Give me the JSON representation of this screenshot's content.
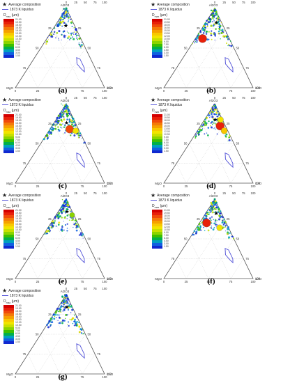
{
  "legend": {
    "average_composition": "Average composition",
    "liquidus": "1873 K liquidus",
    "d_label": "D",
    "d_sub": "max",
    "d_unit": "(μm)",
    "colorbar_ticks": [
      "1.50",
      "3.00",
      "4.50",
      "6.00",
      "7.50",
      "9.00",
      "10.50",
      "12.00",
      "13.50",
      "15.00",
      "16.50",
      "18.00",
      "19.50",
      "21.00",
      "22.50",
      "24.00"
    ]
  },
  "colors": {
    "colorbar": [
      "#d40000",
      "#e8200a",
      "#f04a0a",
      "#f47a08",
      "#f6a000",
      "#f8c800",
      "#f2e400",
      "#c8e000",
      "#8cd400",
      "#3cc000",
      "#00b04a",
      "#00a0c0",
      "#1060e0",
      "#1028d0"
    ],
    "liquidus": "#5050d8",
    "star": "#000000",
    "axis": "#555555"
  },
  "axes": {
    "top_vertex": "Al2O3",
    "right_vertex": "CaO",
    "left_vertex": "MgO",
    "edge_ticks": [
      "0",
      "25",
      "50",
      "75",
      "100"
    ]
  },
  "panels": [
    {
      "caption": "(a)"
    },
    {
      "caption": "(b)"
    },
    {
      "caption": "(c)"
    },
    {
      "caption": "(d)"
    },
    {
      "caption": "(e)"
    },
    {
      "caption": "(f)"
    },
    {
      "caption": "(g)"
    }
  ],
  "chart_data": {
    "type": "scatter",
    "chart_kind": "ternary",
    "components": [
      "Al2O3",
      "CaO",
      "MgO"
    ],
    "tick_values": [
      0,
      25,
      50,
      75,
      100
    ],
    "color_scale": "D_max (μm), 1.50 to 24.00",
    "liquidus_1873K": [
      [
        38,
        47,
        15
      ],
      [
        30,
        52,
        18
      ],
      [
        24,
        60,
        16
      ],
      [
        20,
        66,
        14
      ],
      [
        25,
        63,
        12
      ],
      [
        30,
        58,
        12
      ],
      [
        36,
        52,
        12
      ],
      [
        38,
        47,
        15
      ]
    ],
    "average_composition": [
      {
        "panel": "(a)",
        "Al2O3": 78,
        "CaO": 12,
        "MgO": 10
      },
      {
        "panel": "(b)",
        "Al2O3": 82,
        "CaO": 12,
        "MgO": 6
      },
      {
        "panel": "(c)",
        "Al2O3": 76,
        "CaO": 14,
        "MgO": 10
      },
      {
        "panel": "(d)",
        "Al2O3": 80,
        "CaO": 12,
        "MgO": 8
      },
      {
        "panel": "(e)",
        "Al2O3": 84,
        "CaO": 10,
        "MgO": 6
      },
      {
        "panel": "(f)",
        "Al2O3": 82,
        "CaO": 12,
        "MgO": 6
      },
      {
        "panel": "(g)",
        "Al2O3": 84,
        "CaO": 10,
        "MgO": 6
      }
    ],
    "highlighted_inclusions": [
      {
        "panel": "(b)",
        "Al2O3": 62,
        "CaO": 8,
        "MgO": 30,
        "D_max": 22.5
      },
      {
        "panel": "(c)",
        "Al2O3": 68,
        "CaO": 22,
        "MgO": 10,
        "D_max": 21.0
      },
      {
        "panel": "(c)",
        "Al2O3": 66,
        "CaO": 30,
        "MgO": 4,
        "D_max": 14.0
      },
      {
        "panel": "(d)",
        "Al2O3": 72,
        "CaO": 22,
        "MgO": 6,
        "D_max": 22.5
      },
      {
        "panel": "(d)",
        "Al2O3": 66,
        "CaO": 30,
        "MgO": 4,
        "D_max": 15.0
      },
      {
        "panel": "(d)",
        "Al2O3": 80,
        "CaO": 18,
        "MgO": 2,
        "D_max": 13.0
      },
      {
        "panel": "(e)",
        "Al2O3": 80,
        "CaO": 18,
        "MgO": 2,
        "D_max": 11.0
      },
      {
        "panel": "(f)",
        "Al2O3": 64,
        "CaO": 26,
        "MgO": 10,
        "D_max": 14.0
      },
      {
        "panel": "(f)",
        "Al2O3": 70,
        "CaO": 8,
        "MgO": 22,
        "D_max": 22.0
      }
    ]
  }
}
